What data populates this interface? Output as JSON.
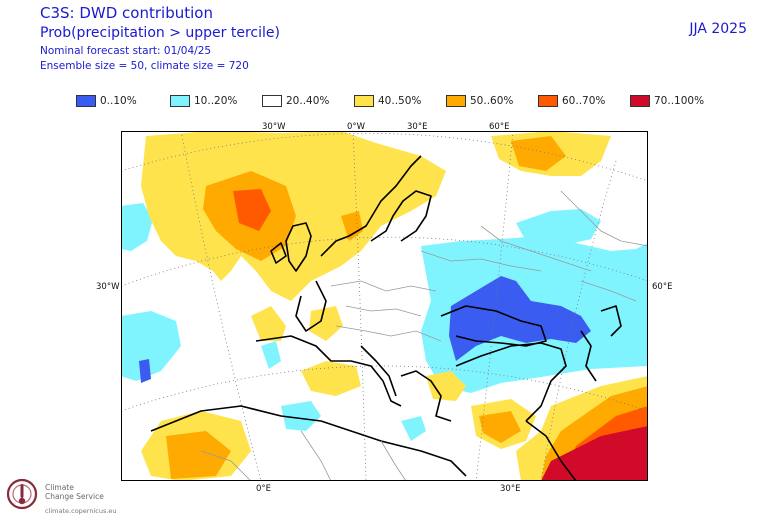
{
  "header": {
    "title": "C3S: DWD contribution",
    "subtitle": "Prob(precipitation > upper tercile)",
    "forecast_start": "Nominal forecast start: 01/04/25",
    "ensemble": "Ensemble size = 50, climate size = 720",
    "season": "JJA 2025"
  },
  "legend": [
    {
      "label": "0..10%",
      "color": "#3a5cf0"
    },
    {
      "label": "10..20%",
      "color": "#7ff4ff"
    },
    {
      "label": "20..40%",
      "color": "#ffffff"
    },
    {
      "label": "40..50%",
      "color": "#ffe34d"
    },
    {
      "label": "50..60%",
      "color": "#ffaa00"
    },
    {
      "label": "60..70%",
      "color": "#ff5a00"
    },
    {
      "label": "70..100%",
      "color": "#d20a2a"
    }
  ],
  "map": {
    "top_labels": [
      "30°W",
      "0°W",
      "30°E",
      "60°E"
    ],
    "left_label": "30°W",
    "right_label": "60°E",
    "bottom_labels": [
      "0°E",
      "30°E"
    ]
  },
  "logo": {
    "line1": "Climate",
    "line2": "Change Service",
    "url": "climate.copernicus.eu"
  }
}
